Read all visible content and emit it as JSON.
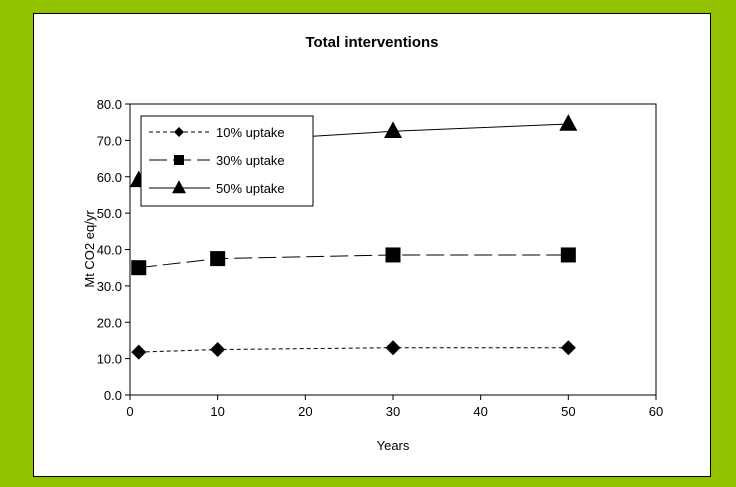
{
  "chart_data": {
    "type": "line",
    "title": "Total interventions",
    "xlabel": "Years",
    "ylabel": "Mt CO2 eq/yr",
    "xlim": [
      0,
      60
    ],
    "ylim": [
      0,
      80
    ],
    "x_ticks": [
      "0",
      "10",
      "20",
      "30",
      "40",
      "50",
      "60"
    ],
    "y_ticks": [
      "0.0",
      "10.0",
      "20.0",
      "30.0",
      "40.0",
      "50.0",
      "60.0",
      "70.0",
      "80.0"
    ],
    "grid": false,
    "legend_position": "top-left",
    "series": [
      {
        "name": "10% uptake",
        "marker": "diamond",
        "line": "short-dash",
        "x": [
          1,
          10,
          30,
          50
        ],
        "y": [
          11.8,
          12.5,
          13.0,
          13.0
        ]
      },
      {
        "name": "30% uptake",
        "marker": "square",
        "line": "long-dash",
        "x": [
          1,
          10,
          30,
          50
        ],
        "y": [
          35.0,
          37.5,
          38.5,
          38.5
        ]
      },
      {
        "name": "50% uptake",
        "marker": "triangle",
        "line": "solid",
        "x": [
          1,
          10,
          30,
          50
        ],
        "y": [
          59.0,
          69.5,
          72.5,
          74.5
        ]
      }
    ]
  },
  "colors": {
    "frame": "#92c100",
    "plot_background": "#ffffff",
    "ink": "#000000"
  }
}
